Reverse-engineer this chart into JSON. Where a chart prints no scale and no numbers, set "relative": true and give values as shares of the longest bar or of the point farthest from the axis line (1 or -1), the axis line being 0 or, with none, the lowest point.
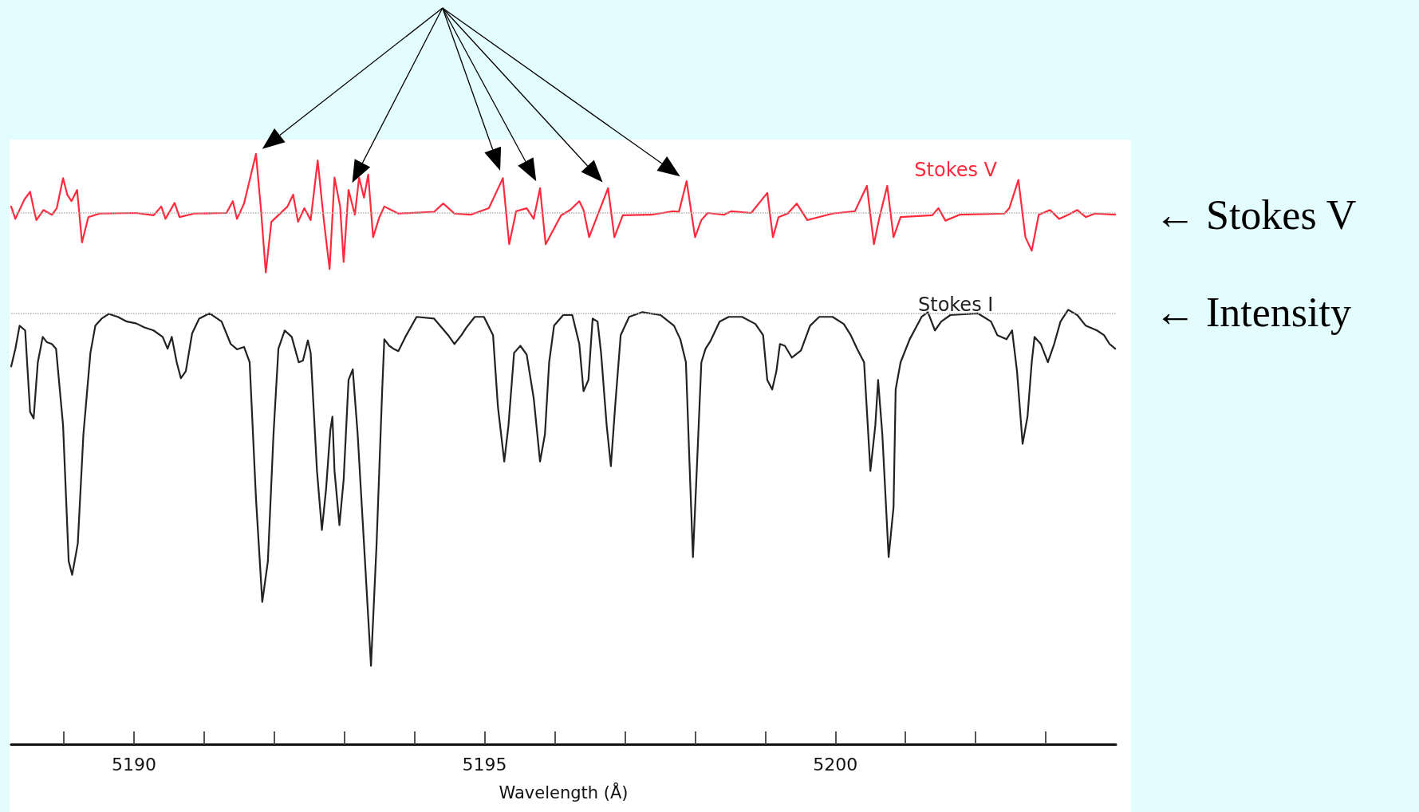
{
  "chart_data": {
    "type": "line",
    "relative": true,
    "xlabel": "Wavelength (Å)",
    "xlim": [
      5188.25,
      5204
    ],
    "xticks": [
      {
        "value": 5189,
        "label": null
      },
      5190,
      {
        "value": 5191,
        "label": null
      },
      {
        "value": 5192,
        "label": null
      },
      {
        "value": 5193,
        "label": null
      },
      {
        "value": 5194,
        "label": null
      },
      5195,
      {
        "value": 5196,
        "label": null
      },
      {
        "value": 5197,
        "label": null
      },
      {
        "value": 5198,
        "label": null
      },
      {
        "value": 5199,
        "label": null
      },
      5200,
      {
        "value": 5201,
        "label": null
      },
      {
        "value": 5202,
        "label": null
      },
      {
        "value": 5203,
        "label": null
      }
    ],
    "tick_labels": "x",
    "marker": "none",
    "line_style": "solid",
    "ref_lines": [
      {
        "axis": "y",
        "value": 0.897,
        "color": "#b0b0b0",
        "line_style": "dotted"
      },
      {
        "axis": "y",
        "value": 0.732,
        "color": "#b0b0b0",
        "line_style": "dotted"
      }
    ],
    "annotations": [
      {
        "text": "← Stokes V",
        "x": 5204,
        "y": 0.897
      },
      {
        "text": "← Intensity",
        "x": 5204,
        "y": 0.732
      }
    ],
    "series": [
      {
        "name": "Stokes V",
        "color": "#ff2a3c",
        "x": [
          5188.25,
          5188.31,
          5188.44,
          5188.52,
          5188.57,
          5188.61,
          5188.71,
          5188.83,
          5188.9,
          5188.99,
          5189.05,
          5189.11,
          5189.19,
          5189.26,
          5189.35,
          5189.51,
          5190.03,
          5190.28,
          5190.39,
          5190.45,
          5190.58,
          5190.65,
          5190.86,
          5191.32,
          5191.41,
          5191.47,
          5191.57,
          5191.74,
          5191.81,
          5191.88,
          5191.96,
          5192.19,
          5192.27,
          5192.34,
          5192.43,
          5192.52,
          5192.62,
          5192.71,
          5192.79,
          5192.86,
          5192.94,
          5192.99,
          5193.06,
          5193.15,
          5193.21,
          5193.28,
          5193.34,
          5193.41,
          5193.5,
          5193.57,
          5193.77,
          5194.28,
          5194.41,
          5194.57,
          5194.8,
          5195.06,
          5195.26,
          5195.35,
          5195.45,
          5195.6,
          5195.7,
          5195.79,
          5195.87,
          5196.09,
          5196.22,
          5196.35,
          5196.41,
          5196.49,
          5196.61,
          5196.76,
          5196.85,
          5196.97,
          5197.38,
          5197.69,
          5197.77,
          5197.88,
          5198.0,
          5198.09,
          5198.18,
          5198.41,
          5198.52,
          5198.8,
          5199.03,
          5199.11,
          5199.19,
          5199.32,
          5199.45,
          5199.6,
          5199.96,
          5200.28,
          5200.45,
          5200.55,
          5200.63,
          5200.74,
          5200.83,
          5200.93,
          5201.38,
          5201.47,
          5201.57,
          5201.77,
          5202.41,
          5202.48,
          5202.61,
          5202.71,
          5202.8,
          5202.9,
          5203.06,
          5203.19,
          5203.32,
          5203.45,
          5203.57,
          5203.7,
          5203.99
        ],
        "values": [
          0.911,
          0.89,
          0.923,
          0.936,
          0.908,
          0.888,
          0.905,
          0.897,
          0.908,
          0.959,
          0.931,
          0.92,
          0.939,
          0.85,
          0.893,
          0.899,
          0.9,
          0.896,
          0.911,
          0.89,
          0.917,
          0.893,
          0.899,
          0.9,
          0.92,
          0.89,
          0.916,
          1.0,
          0.908,
          0.799,
          0.885,
          0.911,
          0.931,
          0.885,
          0.908,
          0.888,
          0.989,
          0.885,
          0.805,
          0.96,
          0.911,
          0.817,
          0.939,
          0.897,
          0.96,
          0.926,
          0.965,
          0.859,
          0.893,
          0.911,
          0.899,
          0.902,
          0.916,
          0.899,
          0.897,
          0.908,
          0.959,
          0.847,
          0.903,
          0.908,
          0.89,
          0.942,
          0.847,
          0.896,
          0.905,
          0.92,
          0.905,
          0.859,
          0.896,
          0.942,
          0.859,
          0.896,
          0.897,
          0.903,
          0.902,
          0.954,
          0.859,
          0.888,
          0.9,
          0.897,
          0.903,
          0.9,
          0.934,
          0.859,
          0.893,
          0.899,
          0.916,
          0.888,
          0.899,
          0.903,
          0.946,
          0.847,
          0.893,
          0.946,
          0.859,
          0.893,
          0.896,
          0.908,
          0.887,
          0.897,
          0.899,
          0.908,
          0.956,
          0.859,
          0.836,
          0.897,
          0.905,
          0.89,
          0.897,
          0.905,
          0.893,
          0.899,
          0.897
        ]
      },
      {
        "name": "Stokes I",
        "color": "#222222",
        "x": [
          5188.25,
          5188.31,
          5188.37,
          5188.45,
          5188.52,
          5188.57,
          5188.63,
          5188.7,
          5188.76,
          5188.83,
          5188.89,
          5188.99,
          5189.07,
          5189.12,
          5189.2,
          5189.28,
          5189.38,
          5189.45,
          5189.54,
          5189.64,
          5189.77,
          5189.9,
          5190.03,
          5190.15,
          5190.28,
          5190.41,
          5190.48,
          5190.54,
          5190.61,
          5190.67,
          5190.74,
          5190.83,
          5190.93,
          5191.08,
          5191.25,
          5191.38,
          5191.47,
          5191.57,
          5191.65,
          5191.74,
          5191.83,
          5191.91,
          5191.99,
          5192.06,
          5192.15,
          5192.25,
          5192.35,
          5192.41,
          5192.48,
          5192.52,
          5192.61,
          5192.68,
          5192.74,
          5192.8,
          5192.83,
          5192.86,
          5192.93,
          5192.99,
          5193.06,
          5193.12,
          5193.19,
          5193.28,
          5193.38,
          5193.46,
          5193.54,
          5193.57,
          5193.64,
          5193.7,
          5193.77,
          5193.87,
          5194.03,
          5194.28,
          5194.48,
          5194.57,
          5194.67,
          5194.74,
          5194.86,
          5194.99,
          5195.12,
          5195.19,
          5195.28,
          5195.34,
          5195.42,
          5195.51,
          5195.6,
          5195.7,
          5195.79,
          5195.86,
          5195.92,
          5195.99,
          5196.12,
          5196.25,
          5196.35,
          5196.41,
          5196.48,
          5196.54,
          5196.61,
          5196.66,
          5196.74,
          5196.8,
          5196.86,
          5196.94,
          5197.06,
          5197.25,
          5197.51,
          5197.7,
          5197.79,
          5197.87,
          5197.92,
          5197.97,
          5198.03,
          5198.09,
          5198.15,
          5198.22,
          5198.35,
          5198.48,
          5198.67,
          5198.86,
          5198.97,
          5199.03,
          5199.1,
          5199.16,
          5199.21,
          5199.28,
          5199.38,
          5199.51,
          5199.64,
          5199.77,
          5199.96,
          5200.12,
          5200.22,
          5200.31,
          5200.41,
          5200.5,
          5200.57,
          5200.61,
          5200.67,
          5200.76,
          5200.83,
          5200.86,
          5200.93,
          5201.06,
          5201.23,
          5201.32,
          5201.42,
          5201.51,
          5201.64,
          5202.03,
          5202.22,
          5202.31,
          5202.44,
          5202.52,
          5202.59,
          5202.67,
          5202.74,
          5202.8,
          5202.84,
          5202.93,
          5203.03,
          5203.12,
          5203.21,
          5203.32,
          5203.45,
          5203.57,
          5203.73,
          5203.83,
          5203.91,
          5203.99
        ],
        "values": [
          0.64,
          0.67,
          0.709,
          0.701,
          0.563,
          0.552,
          0.647,
          0.69,
          0.681,
          0.678,
          0.67,
          0.54,
          0.31,
          0.287,
          0.34,
          0.525,
          0.663,
          0.709,
          0.721,
          0.729,
          0.724,
          0.716,
          0.713,
          0.706,
          0.701,
          0.69,
          0.67,
          0.69,
          0.647,
          0.62,
          0.632,
          0.696,
          0.721,
          0.73,
          0.716,
          0.678,
          0.669,
          0.673,
          0.647,
          0.417,
          0.241,
          0.31,
          0.525,
          0.67,
          0.701,
          0.69,
          0.647,
          0.65,
          0.684,
          0.663,
          0.463,
          0.363,
          0.433,
          0.532,
          0.555,
          0.463,
          0.371,
          0.448,
          0.617,
          0.635,
          0.525,
          0.34,
          0.133,
          0.34,
          0.601,
          0.686,
          0.675,
          0.67,
          0.666,
          0.69,
          0.724,
          0.721,
          0.693,
          0.678,
          0.693,
          0.706,
          0.724,
          0.724,
          0.693,
          0.571,
          0.479,
          0.54,
          0.663,
          0.675,
          0.66,
          0.586,
          0.479,
          0.525,
          0.647,
          0.709,
          0.727,
          0.727,
          0.678,
          0.598,
          0.617,
          0.721,
          0.716,
          0.663,
          0.54,
          0.471,
          0.571,
          0.693,
          0.724,
          0.732,
          0.727,
          0.709,
          0.686,
          0.647,
          0.479,
          0.317,
          0.479,
          0.647,
          0.67,
          0.683,
          0.716,
          0.724,
          0.724,
          0.712,
          0.693,
          0.617,
          0.601,
          0.632,
          0.678,
          0.675,
          0.655,
          0.667,
          0.709,
          0.724,
          0.724,
          0.712,
          0.693,
          0.67,
          0.647,
          0.463,
          0.54,
          0.617,
          0.525,
          0.317,
          0.402,
          0.601,
          0.647,
          0.686,
          0.724,
          0.732,
          0.701,
          0.716,
          0.727,
          0.73,
          0.716,
          0.693,
          0.686,
          0.701,
          0.632,
          0.509,
          0.555,
          0.647,
          0.69,
          0.678,
          0.647,
          0.678,
          0.716,
          0.736,
          0.727,
          0.709,
          0.701,
          0.693,
          0.678,
          0.67
        ]
      }
    ]
  }
}
